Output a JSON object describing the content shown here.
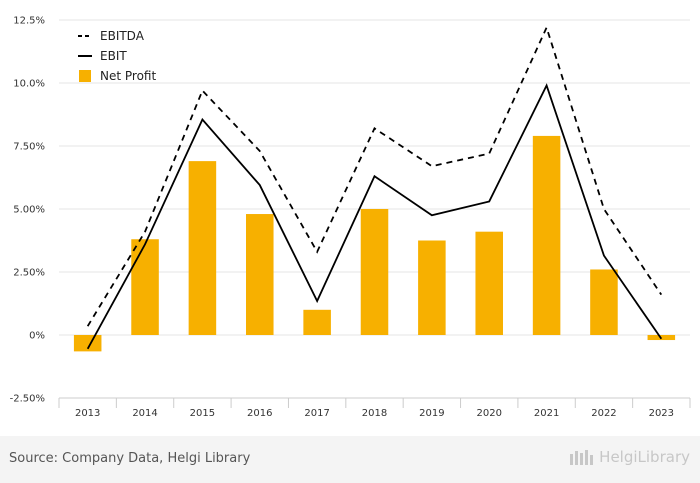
{
  "chart_data": {
    "type": "bar+line",
    "categories": [
      "2013",
      "2014",
      "2015",
      "2016",
      "2017",
      "2018",
      "2019",
      "2020",
      "2021",
      "2022",
      "2023"
    ],
    "series": [
      {
        "name": "EBITDA",
        "kind": "line",
        "style": "dashed",
        "color": "#000000",
        "values": [
          0.35,
          4.1,
          9.7,
          7.3,
          3.3,
          8.2,
          6.7,
          7.2,
          12.2,
          5.0,
          1.6
        ]
      },
      {
        "name": "EBIT",
        "kind": "line",
        "style": "solid",
        "color": "#000000",
        "values": [
          -0.55,
          3.6,
          8.55,
          5.95,
          1.35,
          6.3,
          4.75,
          5.3,
          9.9,
          3.15,
          -0.15
        ]
      },
      {
        "name": "Net Profit",
        "kind": "bar",
        "color": "#f7b000",
        "values": [
          -0.65,
          3.8,
          6.9,
          4.8,
          1.0,
          5.0,
          3.75,
          4.1,
          7.9,
          2.6,
          -0.2
        ]
      }
    ],
    "yticks": [
      -2.5,
      0,
      2.5,
      5.0,
      7.5,
      10.0,
      12.5
    ],
    "ytick_labels": [
      "-2.50%",
      "0%",
      "2.50%",
      "5.00%",
      "7.50%",
      "10.0%",
      "12.5%"
    ],
    "ylim": [
      -2.5,
      12.5
    ],
    "grid": true,
    "legend_position": "top-left",
    "title": "",
    "xlabel": "",
    "ylabel": ""
  },
  "footer": {
    "source": "Source: Company Data, Helgi Library",
    "brand": "HelgiLibrary"
  }
}
